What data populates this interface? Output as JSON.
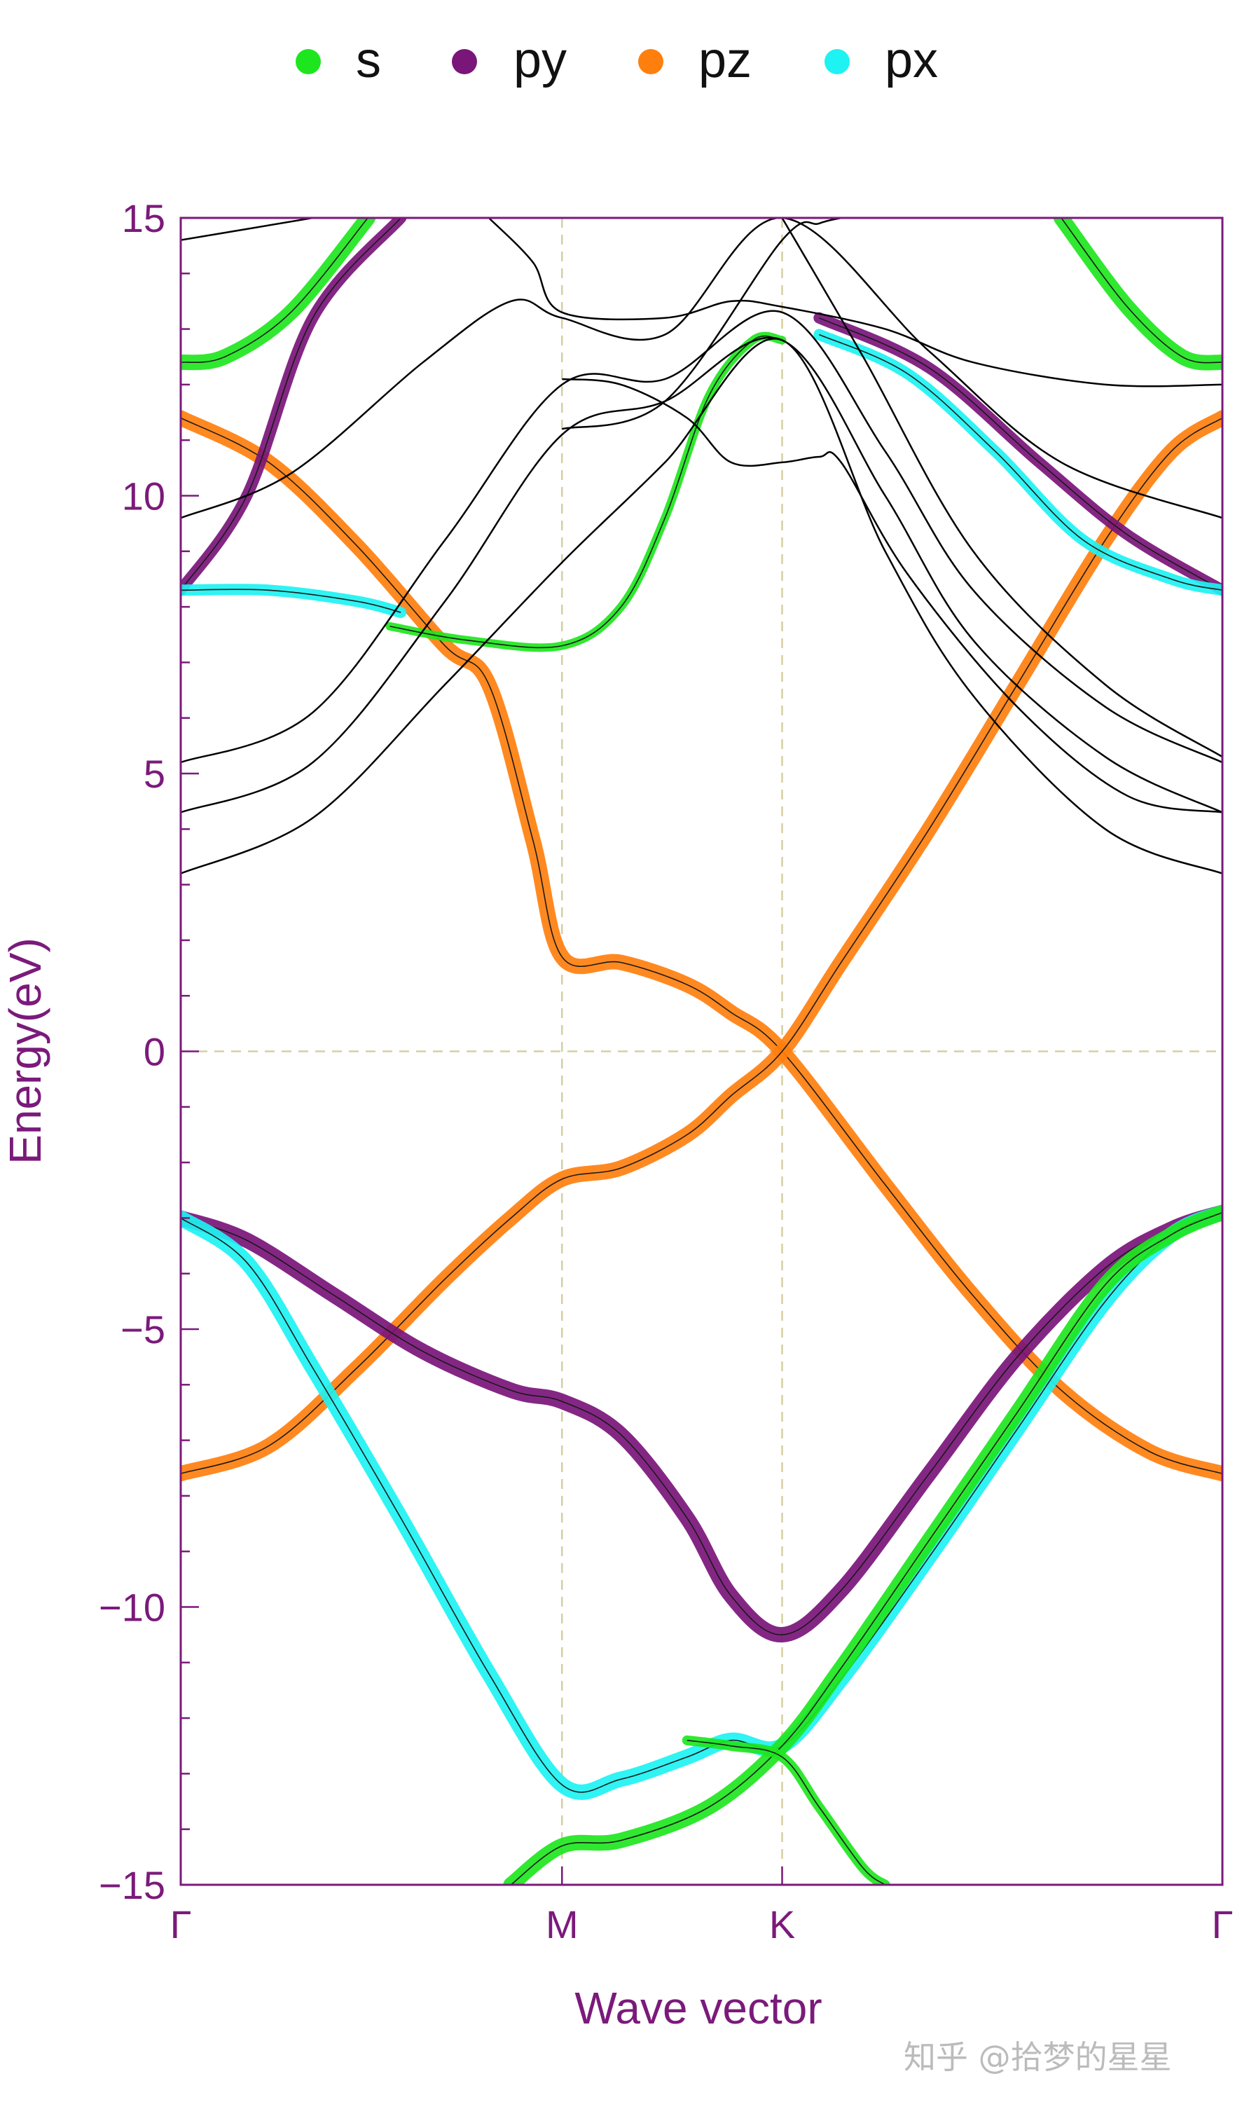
{
  "chart_data": {
    "type": "line",
    "title": "",
    "xlabel": "Wave vector",
    "ylabel": "Energy(eV)",
    "ylim": [
      -15,
      15
    ],
    "y_ticks": [
      -15,
      -10,
      -5,
      0,
      5,
      10,
      15
    ],
    "y_tick_labels": [
      "−15",
      "−10",
      "−5",
      "0",
      "5",
      "10",
      "15"
    ],
    "kpoints": [
      {
        "label": "Γ",
        "x": 0
      },
      {
        "label": "M",
        "x": 1.732
      },
      {
        "label": "K",
        "x": 2.732
      },
      {
        "label": "Γ",
        "x": 4.732
      }
    ],
    "xlim": [
      0,
      4.732
    ],
    "grid": "dashed guides at M, K and E=0",
    "legend": {
      "placement": "top",
      "entries": [
        {
          "name": "s",
          "color": "#1ee61e"
        },
        {
          "name": "py",
          "color": "#7a157a"
        },
        {
          "name": "pz",
          "color": "#ff7f0e"
        },
        {
          "name": "px",
          "color": "#1ef2f2"
        }
      ]
    },
    "series": [
      {
        "name": "pz",
        "color": "#ff7f0e",
        "width": 22,
        "points": [
          [
            0,
            11.4
          ],
          [
            0.4,
            10.6
          ],
          [
            0.8,
            9.1
          ],
          [
            1.2,
            7.3
          ],
          [
            1.4,
            6.6
          ],
          [
            1.6,
            3.8
          ],
          [
            1.732,
            1.7
          ],
          [
            2.0,
            1.6
          ],
          [
            2.3,
            1.2
          ],
          [
            2.5,
            0.7
          ],
          [
            2.732,
            0.0
          ],
          [
            3.2,
            -2.4
          ],
          [
            3.6,
            -4.4
          ],
          [
            4.0,
            -6.1
          ],
          [
            4.4,
            -7.2
          ],
          [
            4.732,
            -7.6
          ]
        ]
      },
      {
        "name": "pz",
        "color": "#ff7f0e",
        "width": 22,
        "points": [
          [
            0,
            -7.6
          ],
          [
            0.4,
            -7.1
          ],
          [
            0.8,
            -5.7
          ],
          [
            1.2,
            -4.1
          ],
          [
            1.5,
            -3.0
          ],
          [
            1.732,
            -2.3
          ],
          [
            2.0,
            -2.1
          ],
          [
            2.3,
            -1.5
          ],
          [
            2.5,
            -0.8
          ],
          [
            2.732,
            0.0
          ],
          [
            3.0,
            1.6
          ],
          [
            3.4,
            4.0
          ],
          [
            3.8,
            6.6
          ],
          [
            4.2,
            9.2
          ],
          [
            4.5,
            10.8
          ],
          [
            4.732,
            11.4
          ]
        ]
      },
      {
        "name": "py",
        "color": "#7a157a",
        "width": 22,
        "points": [
          [
            0,
            -3.0
          ],
          [
            0.3,
            -3.4
          ],
          [
            0.7,
            -4.4
          ],
          [
            1.1,
            -5.4
          ],
          [
            1.5,
            -6.1
          ],
          [
            1.732,
            -6.3
          ],
          [
            2.0,
            -6.9
          ],
          [
            2.3,
            -8.4
          ],
          [
            2.5,
            -9.8
          ],
          [
            2.732,
            -10.5
          ],
          [
            3.0,
            -9.7
          ],
          [
            3.4,
            -7.6
          ],
          [
            3.8,
            -5.5
          ],
          [
            4.2,
            -3.9
          ],
          [
            4.5,
            -3.2
          ],
          [
            4.732,
            -2.9
          ]
        ]
      },
      {
        "name": "px",
        "color": "#1ef2f2",
        "width": 22,
        "points": [
          [
            0,
            -3.0
          ],
          [
            0.3,
            -3.8
          ],
          [
            0.6,
            -5.7
          ],
          [
            1.0,
            -8.4
          ],
          [
            1.4,
            -11.2
          ],
          [
            1.732,
            -13.2
          ],
          [
            2.0,
            -13.1
          ],
          [
            2.3,
            -12.7
          ],
          [
            2.5,
            -12.4
          ],
          [
            2.732,
            -12.5
          ],
          [
            3.0,
            -11.3
          ],
          [
            3.4,
            -9.1
          ],
          [
            3.8,
            -6.8
          ],
          [
            4.2,
            -4.5
          ],
          [
            4.5,
            -3.3
          ],
          [
            4.732,
            -2.9
          ]
        ]
      },
      {
        "name": "s",
        "color": "#1ee61e",
        "width": 22,
        "points": [
          [
            1.5,
            -15.0
          ],
          [
            1.732,
            -14.3
          ],
          [
            2.0,
            -14.2
          ],
          [
            2.4,
            -13.6
          ],
          [
            2.732,
            -12.5
          ],
          [
            3.0,
            -11.1
          ],
          [
            3.4,
            -8.8
          ],
          [
            3.8,
            -6.5
          ],
          [
            4.2,
            -4.2
          ],
          [
            4.5,
            -3.3
          ],
          [
            4.732,
            -2.9
          ]
        ]
      },
      {
        "name": "s",
        "color": "#1ee61e",
        "width": 14,
        "points": [
          [
            2.3,
            -12.4
          ],
          [
            2.5,
            -12.5
          ],
          [
            2.732,
            -12.7
          ],
          [
            2.9,
            -13.6
          ],
          [
            3.1,
            -14.7
          ],
          [
            3.2,
            -15.0
          ]
        ]
      },
      {
        "name": "s",
        "color": "#1ee61e",
        "width": 22,
        "points": [
          [
            0,
            12.4
          ],
          [
            0.2,
            12.5
          ],
          [
            0.5,
            13.3
          ],
          [
            0.85,
            15.0
          ]
        ]
      },
      {
        "name": "s",
        "color": "#1ee61e",
        "width": 22,
        "points": [
          [
            4.0,
            15.0
          ],
          [
            4.3,
            13.4
          ],
          [
            4.55,
            12.5
          ],
          [
            4.732,
            12.4
          ]
        ]
      },
      {
        "name": "s",
        "color": "#1ee61e",
        "width": 12,
        "points": [
          [
            0.95,
            7.65
          ],
          [
            1.3,
            7.4
          ],
          [
            1.732,
            7.3
          ],
          [
            2.0,
            8.0
          ],
          [
            2.2,
            9.6
          ],
          [
            2.4,
            11.8
          ],
          [
            2.6,
            12.8
          ],
          [
            2.732,
            12.8
          ]
        ]
      },
      {
        "name": "py",
        "color": "#7a157a",
        "width": 16,
        "points": [
          [
            0,
            8.3
          ],
          [
            0.3,
            10.0
          ],
          [
            0.6,
            13.2
          ],
          [
            1.0,
            15.0
          ]
        ]
      },
      {
        "name": "py",
        "color": "#7a157a",
        "width": 16,
        "points": [
          [
            2.9,
            13.2
          ],
          [
            3.4,
            12.3
          ],
          [
            3.9,
            10.6
          ],
          [
            4.3,
            9.3
          ],
          [
            4.732,
            8.3
          ]
        ]
      },
      {
        "name": "px",
        "color": "#1ef2f2",
        "width": 16,
        "points": [
          [
            0,
            8.3
          ],
          [
            0.4,
            8.3
          ],
          [
            0.8,
            8.1
          ],
          [
            1.0,
            7.9
          ]
        ]
      },
      {
        "name": "px",
        "color": "#1ef2f2",
        "width": 16,
        "points": [
          [
            2.9,
            12.9
          ],
          [
            3.3,
            12.2
          ],
          [
            3.7,
            10.8
          ],
          [
            4.1,
            9.2
          ],
          [
            4.5,
            8.5
          ],
          [
            4.732,
            8.3
          ]
        ]
      },
      {
        "name": "band",
        "color": "#000000",
        "width": 2.5,
        "points": [
          [
            0,
            3.2
          ],
          [
            0.6,
            4.2
          ],
          [
            1.2,
            6.6
          ],
          [
            1.732,
            8.8
          ],
          [
            2.2,
            10.6
          ],
          [
            2.732,
            12.8
          ],
          [
            3.2,
            9.0
          ],
          [
            3.6,
            6.4
          ],
          [
            4.2,
            4.0
          ],
          [
            4.732,
            3.2
          ]
        ]
      },
      {
        "name": "band",
        "color": "#000000",
        "width": 2.5,
        "points": [
          [
            0,
            4.3
          ],
          [
            0.6,
            5.2
          ],
          [
            1.2,
            8.1
          ],
          [
            1.732,
            11.1
          ],
          [
            2.2,
            11.7
          ],
          [
            2.732,
            12.8
          ],
          [
            3.2,
            10.0
          ],
          [
            3.6,
            7.4
          ],
          [
            4.2,
            5.3
          ],
          [
            4.732,
            4.3
          ]
        ]
      },
      {
        "name": "band",
        "color": "#000000",
        "width": 2.5,
        "points": [
          [
            0,
            5.2
          ],
          [
            0.6,
            6.1
          ],
          [
            1.2,
            9.2
          ],
          [
            1.732,
            12.0
          ],
          [
            2.2,
            12.1
          ],
          [
            2.732,
            13.3
          ],
          [
            3.2,
            10.8
          ],
          [
            3.6,
            8.3
          ],
          [
            4.2,
            6.2
          ],
          [
            4.732,
            5.2
          ]
        ]
      },
      {
        "name": "band",
        "color": "#000000",
        "width": 2.5,
        "points": [
          [
            0,
            9.6
          ],
          [
            0.5,
            10.4
          ],
          [
            1.1,
            12.4
          ],
          [
            1.5,
            13.5
          ],
          [
            1.732,
            13.2
          ],
          [
            2.2,
            12.9
          ],
          [
            2.732,
            15.0
          ],
          [
            3.4,
            12.6
          ],
          [
            4.0,
            10.6
          ],
          [
            4.732,
            9.6
          ]
        ]
      },
      {
        "name": "band",
        "color": "#000000",
        "width": 2.5,
        "points": [
          [
            0,
            14.6
          ],
          [
            0.6,
            15.0
          ]
        ]
      },
      {
        "name": "band",
        "color": "#000000",
        "width": 2.5,
        "points": [
          [
            1.4,
            15.0
          ],
          [
            1.6,
            14.2
          ],
          [
            1.732,
            13.3
          ],
          [
            2.2,
            13.2
          ],
          [
            2.5,
            13.5
          ],
          [
            2.732,
            13.4
          ],
          [
            3.2,
            13.0
          ],
          [
            3.6,
            12.4
          ],
          [
            4.2,
            12.0
          ],
          [
            4.732,
            12.0
          ]
        ]
      },
      {
        "name": "band",
        "color": "#000000",
        "width": 2.5,
        "points": [
          [
            1.732,
            12.1
          ],
          [
            2.0,
            12.0
          ],
          [
            2.3,
            11.4
          ],
          [
            2.5,
            10.6
          ],
          [
            2.732,
            10.6
          ],
          [
            2.9,
            10.7
          ],
          [
            3.0,
            10.6
          ],
          [
            3.3,
            8.6
          ],
          [
            3.8,
            6.2
          ],
          [
            4.3,
            4.6
          ],
          [
            4.732,
            4.3
          ]
        ]
      },
      {
        "name": "band",
        "color": "#000000",
        "width": 2.5,
        "points": [
          [
            2.732,
            15.0
          ],
          [
            3.1,
            12.5
          ],
          [
            3.6,
            9.0
          ],
          [
            4.2,
            6.6
          ],
          [
            4.732,
            5.3
          ]
        ]
      },
      {
        "name": "band",
        "color": "#000000",
        "width": 2.5,
        "points": [
          [
            1.732,
            11.2
          ],
          [
            2.2,
            11.7
          ],
          [
            2.732,
            14.6
          ],
          [
            2.9,
            14.9
          ],
          [
            3.0,
            15.0
          ]
        ]
      }
    ]
  },
  "watermark": "知乎 @拾梦的星星"
}
